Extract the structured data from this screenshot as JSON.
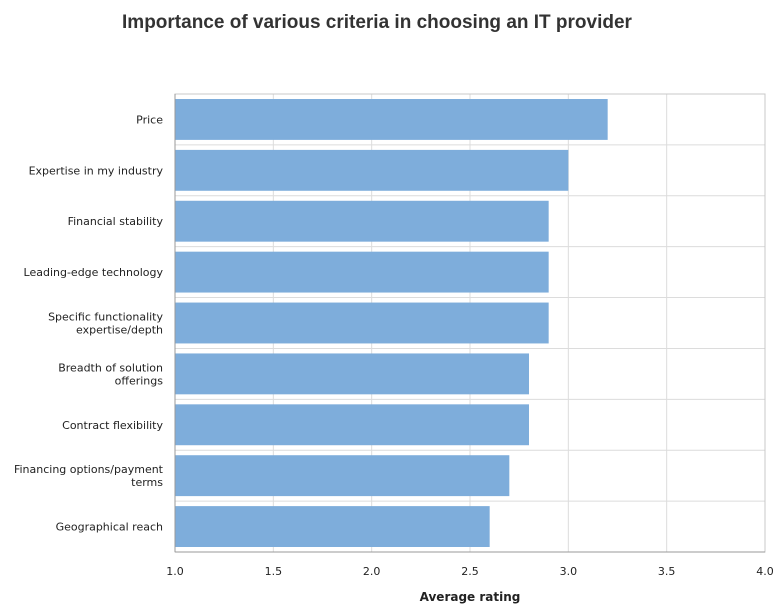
{
  "chart_data": {
    "type": "bar",
    "orientation": "horizontal",
    "title": "Importance of various criteria in choosing an IT provider",
    "xlabel": "Average rating",
    "ylabel": "",
    "categories": [
      [
        "Price"
      ],
      [
        "Expertise in my industry"
      ],
      [
        "Financial stability"
      ],
      [
        "Leading-edge technology"
      ],
      [
        "Specific functionality",
        "expertise/depth"
      ],
      [
        "Breadth of solution",
        "offerings"
      ],
      [
        "Contract flexibility"
      ],
      [
        "Financing options/payment",
        "terms"
      ],
      [
        "Geographical reach"
      ]
    ],
    "values": [
      3.2,
      3.0,
      2.9,
      2.9,
      2.9,
      2.8,
      2.8,
      2.7,
      2.6
    ],
    "xlim": [
      1.0,
      4.0
    ],
    "xticks": [
      "1.0",
      "1.5",
      "2.0",
      "2.5",
      "3.0",
      "3.5",
      "4.0"
    ],
    "grid": true,
    "bar_color": "#7eaddb"
  }
}
